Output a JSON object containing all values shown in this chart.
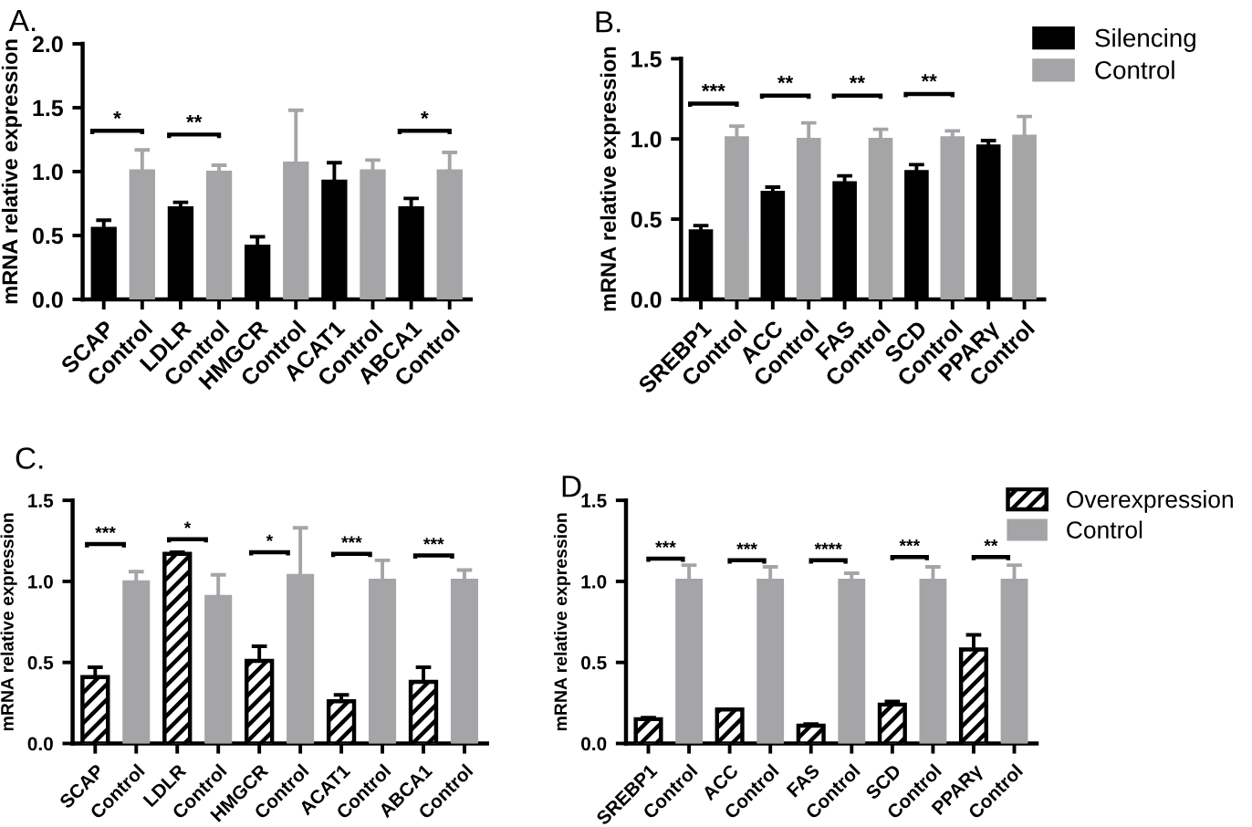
{
  "chart_data": [
    {
      "type": "bar",
      "title": "A.",
      "ylabel": "mRNA relative expression",
      "categories": [
        "SCAP",
        "Control",
        "LDLR",
        "Control",
        "HMGCR",
        "Control",
        "ACAT1",
        "Control",
        "ABCA1",
        "Control"
      ],
      "series": [
        {
          "color": "#000000",
          "values": [
            0.56,
            null,
            0.72,
            null,
            0.42,
            null,
            0.93,
            null,
            0.72,
            null
          ],
          "errors": [
            0.06,
            null,
            0.04,
            null,
            0.07,
            null,
            0.14,
            null,
            0.07,
            null
          ]
        },
        {
          "color": "#a5a5a8",
          "values": [
            null,
            1.01,
            null,
            1.0,
            null,
            1.07,
            null,
            1.01,
            null,
            1.01
          ],
          "errors": [
            null,
            0.16,
            null,
            0.05,
            null,
            0.41,
            null,
            0.08,
            null,
            0.14
          ]
        }
      ],
      "ylim": [
        0,
        2.0
      ],
      "yticks": [
        {
          "value": 0,
          "label": "0.0"
        },
        {
          "value": 0.5,
          "label": "0.5"
        },
        {
          "value": 1,
          "label": "1.0"
        },
        {
          "value": 1.5,
          "label": "1.5"
        },
        {
          "value": 2,
          "label": "2.0"
        }
      ],
      "annotations": [
        "*",
        "**",
        "*"
      ]
    },
    {
      "type": "bar",
      "title": "B.",
      "ylabel": "mRNA relative expression",
      "categories": [
        "SREBP1",
        "Control",
        "ACC",
        "Control",
        "FAS",
        "Control",
        "SCD",
        "Control",
        "PPARγ",
        "Control"
      ],
      "series": [
        {
          "name": "Silencing",
          "color": "#000000",
          "values": [
            0.43,
            null,
            0.67,
            null,
            0.73,
            null,
            0.8,
            null,
            0.96,
            null
          ],
          "errors": [
            0.03,
            null,
            0.03,
            null,
            0.04,
            null,
            0.04,
            null,
            0.03,
            null
          ]
        },
        {
          "name": "Control",
          "color": "#a5a5a8",
          "values": [
            null,
            1.01,
            null,
            1.0,
            null,
            1.0,
            null,
            1.01,
            null,
            1.02
          ],
          "errors": [
            null,
            0.07,
            null,
            0.1,
            null,
            0.06,
            null,
            0.04,
            null,
            0.12
          ]
        }
      ],
      "ylim": [
        0,
        1.5
      ],
      "yticks": [
        {
          "value": 0,
          "label": "0.0"
        },
        {
          "value": 0.5,
          "label": "0.5"
        },
        {
          "value": 1,
          "label": "1.0"
        },
        {
          "value": 1.5,
          "label": "1.5"
        }
      ],
      "legend": "top right",
      "annotations": [
        "***",
        "**",
        "**",
        "**"
      ]
    },
    {
      "type": "bar",
      "title": "C.",
      "ylabel": "mRNA relative expression",
      "categories": [
        "SCAP",
        "Control",
        "LDLR",
        "Control",
        "HMGCR",
        "Control",
        "ACAT1",
        "Control",
        "ABCA1",
        "Control"
      ],
      "series": [
        {
          "color": "#000000",
          "values": [
            0.41,
            null,
            1.17,
            null,
            0.51,
            null,
            0.26,
            null,
            0.38,
            null
          ],
          "errors": [
            0.06,
            null,
            0.01,
            null,
            0.09,
            null,
            0.04,
            null,
            0.09,
            null
          ]
        },
        {
          "color": "#a5a5a8",
          "values": [
            null,
            1.0,
            null,
            0.91,
            null,
            1.04,
            null,
            1.01,
            null,
            1.01
          ],
          "errors": [
            null,
            0.06,
            null,
            0.13,
            null,
            0.29,
            null,
            0.12,
            null,
            0.06
          ]
        }
      ],
      "ylim": [
        0,
        1.5
      ],
      "yticks": [
        {
          "value": 0,
          "label": "0.0"
        },
        {
          "value": 0.5,
          "label": "0.5"
        },
        {
          "value": 1,
          "label": "1.0"
        },
        {
          "value": 1.5,
          "label": "1.5"
        }
      ],
      "annotations": [
        "***",
        "*",
        "*",
        "***",
        "***"
      ]
    },
    {
      "type": "bar",
      "title": "D.",
      "ylabel": "mRNA relative expression",
      "categories": [
        "SREBP1",
        "Control",
        "ACC",
        "Control",
        "FAS",
        "Control",
        "SCD",
        "Control",
        "PPARγ",
        "Control"
      ],
      "series": [
        {
          "name": "Overexpression",
          "color": "#000000",
          "values": [
            0.15,
            null,
            0.21,
            null,
            0.11,
            null,
            0.24,
            null,
            0.58,
            null
          ],
          "errors": [
            0.01,
            null,
            null,
            null,
            0.01,
            null,
            0.02,
            null,
            0.09,
            null
          ]
        },
        {
          "name": "Control",
          "color": "#a5a5a8",
          "values": [
            null,
            1.01,
            null,
            1.01,
            null,
            1.01,
            null,
            1.01,
            null,
            1.01
          ],
          "errors": [
            null,
            0.09,
            null,
            0.08,
            null,
            0.04,
            null,
            0.08,
            null,
            0.09
          ]
        }
      ],
      "ylim": [
        0,
        1.5
      ],
      "yticks": [
        {
          "value": 0,
          "label": "0.0"
        },
        {
          "value": 0.5,
          "label": "0.5"
        },
        {
          "value": 1,
          "label": "1.0"
        },
        {
          "value": 1.5,
          "label": "1.5"
        }
      ],
      "legend": "top right",
      "annotations": [
        "***",
        "***",
        "****",
        "***",
        "**"
      ]
    }
  ]
}
